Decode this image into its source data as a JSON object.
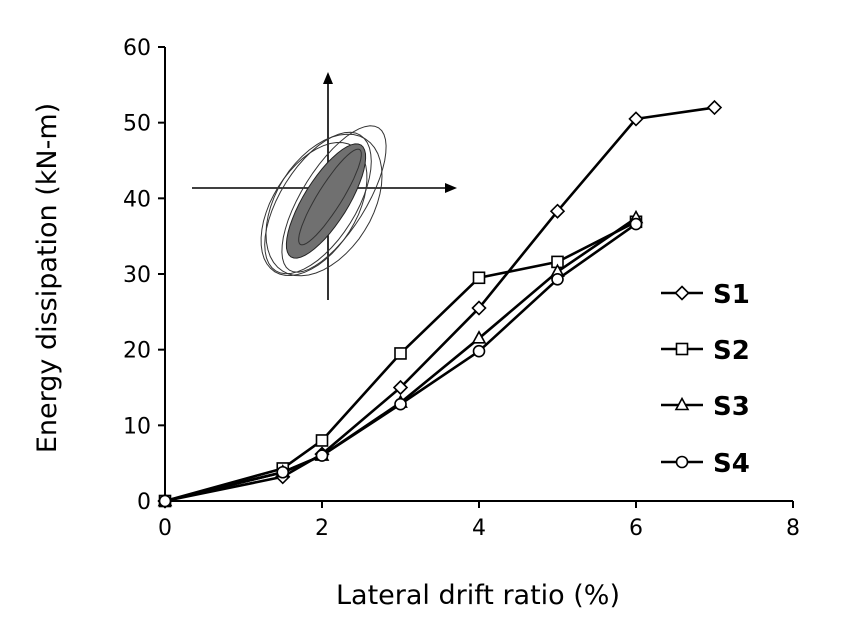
{
  "chart_data": {
    "type": "line",
    "xlabel": "Lateral drift ratio (%)",
    "ylabel": "Energy dissipation (kN-m)",
    "xlim": [
      0,
      8
    ],
    "ylim": [
      0,
      60
    ],
    "x_ticks": [
      "0",
      "2",
      "4",
      "6",
      "8"
    ],
    "y_ticks": [
      "0",
      "10",
      "20",
      "30",
      "40",
      "50",
      "60"
    ],
    "grid": false,
    "legend_position": "right",
    "inset": "hysteresis loops sketch (upper-left)",
    "series": [
      {
        "name": "S1",
        "marker": "diamond",
        "x": [
          0,
          1.5,
          2,
          3,
          4,
          5,
          6,
          7
        ],
        "y": [
          0,
          3.2,
          6.2,
          15.0,
          25.5,
          38.3,
          50.5,
          52.0
        ]
      },
      {
        "name": "S2",
        "marker": "square",
        "x": [
          0,
          1.5,
          2,
          3,
          4,
          5,
          6
        ],
        "y": [
          0,
          4.3,
          8.0,
          19.5,
          29.5,
          31.6,
          36.9
        ]
      },
      {
        "name": "S3",
        "marker": "triangle",
        "x": [
          0,
          1.5,
          2,
          3,
          4,
          5,
          6
        ],
        "y": [
          0,
          3.8,
          6.0,
          13.0,
          21.5,
          30.3,
          37.4
        ]
      },
      {
        "name": "S4",
        "marker": "circle",
        "x": [
          0,
          1.5,
          2,
          3,
          4,
          5,
          6
        ],
        "y": [
          0,
          3.8,
          6.0,
          12.8,
          19.8,
          29.3,
          36.6
        ]
      }
    ]
  }
}
